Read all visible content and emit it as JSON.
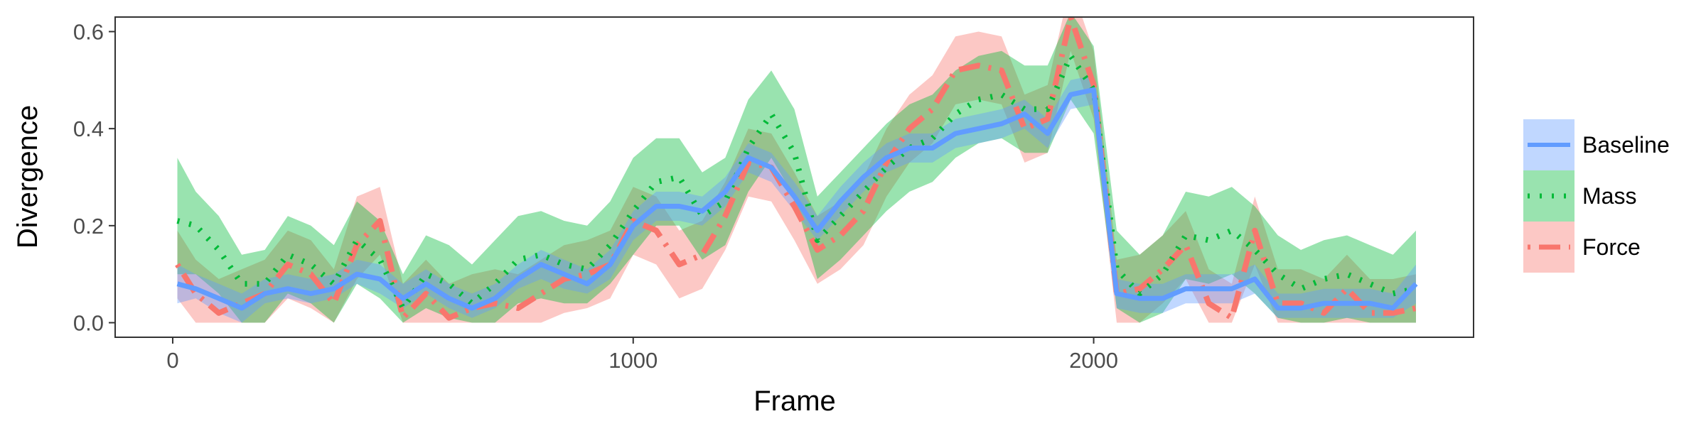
{
  "chart_data": {
    "type": "line",
    "title": "",
    "xlabel": "Frame",
    "ylabel": "Divergence",
    "xlim": [
      -125,
      2825
    ],
    "ylim": [
      -0.03,
      0.63
    ],
    "xticks": [
      0,
      1000,
      2000
    ],
    "yticks": [
      0.0,
      0.2,
      0.4,
      0.6
    ],
    "xtick_labels": [
      "0",
      "1000",
      "2000"
    ],
    "ytick_labels": [
      "0.0",
      "0.2",
      "0.4",
      "0.6"
    ],
    "grid": false,
    "legend_position": "right",
    "x": [
      10,
      50,
      100,
      150,
      200,
      250,
      300,
      350,
      400,
      450,
      500,
      550,
      600,
      650,
      700,
      750,
      800,
      850,
      900,
      950,
      1000,
      1050,
      1100,
      1150,
      1200,
      1250,
      1300,
      1350,
      1400,
      1450,
      1500,
      1550,
      1600,
      1650,
      1700,
      1750,
      1800,
      1850,
      1900,
      1950,
      2000,
      2050,
      2100,
      2150,
      2200,
      2250,
      2300,
      2350,
      2400,
      2450,
      2500,
      2550,
      2600,
      2650,
      2700
    ],
    "series": [
      {
        "name": "Baseline",
        "color": "#619CFF",
        "line_style": "solid",
        "values": [
          0.08,
          0.07,
          0.05,
          0.03,
          0.06,
          0.07,
          0.06,
          0.07,
          0.1,
          0.09,
          0.05,
          0.08,
          0.05,
          0.03,
          0.05,
          0.09,
          0.12,
          0.1,
          0.08,
          0.12,
          0.2,
          0.24,
          0.24,
          0.23,
          0.27,
          0.34,
          0.32,
          0.26,
          0.19,
          0.25,
          0.3,
          0.34,
          0.36,
          0.36,
          0.39,
          0.4,
          0.41,
          0.43,
          0.39,
          0.47,
          0.48,
          0.06,
          0.05,
          0.05,
          0.07,
          0.07,
          0.07,
          0.09,
          0.03,
          0.03,
          0.04,
          0.04,
          0.04,
          0.03,
          0.08
        ],
        "lower": [
          0.04,
          0.05,
          0.02,
          0.0,
          0.04,
          0.05,
          0.04,
          0.05,
          0.08,
          0.06,
          0.03,
          0.06,
          0.03,
          0.01,
          0.03,
          0.07,
          0.09,
          0.07,
          0.06,
          0.09,
          0.17,
          0.21,
          0.21,
          0.2,
          0.24,
          0.31,
          0.29,
          0.23,
          0.17,
          0.22,
          0.27,
          0.31,
          0.33,
          0.33,
          0.36,
          0.37,
          0.38,
          0.4,
          0.36,
          0.44,
          0.45,
          0.03,
          0.02,
          0.02,
          0.04,
          0.04,
          0.04,
          0.06,
          0.01,
          0.01,
          0.01,
          0.01,
          0.01,
          0.01,
          0.04
        ],
        "upper": [
          0.12,
          0.1,
          0.08,
          0.06,
          0.09,
          0.1,
          0.09,
          0.1,
          0.13,
          0.12,
          0.08,
          0.11,
          0.08,
          0.06,
          0.08,
          0.12,
          0.15,
          0.13,
          0.11,
          0.15,
          0.23,
          0.27,
          0.27,
          0.26,
          0.3,
          0.37,
          0.35,
          0.29,
          0.22,
          0.28,
          0.33,
          0.37,
          0.39,
          0.39,
          0.42,
          0.43,
          0.44,
          0.46,
          0.42,
          0.5,
          0.51,
          0.09,
          0.08,
          0.08,
          0.1,
          0.1,
          0.1,
          0.12,
          0.06,
          0.06,
          0.07,
          0.07,
          0.07,
          0.06,
          0.12
        ]
      },
      {
        "name": "Mass",
        "color": "#00BA38",
        "line_style": "dotted",
        "values": [
          0.21,
          0.2,
          0.15,
          0.08,
          0.08,
          0.14,
          0.12,
          0.08,
          0.17,
          0.13,
          0.03,
          0.1,
          0.08,
          0.04,
          0.08,
          0.13,
          0.14,
          0.12,
          0.11,
          0.16,
          0.23,
          0.29,
          0.3,
          0.22,
          0.25,
          0.36,
          0.43,
          0.35,
          0.17,
          0.22,
          0.27,
          0.32,
          0.36,
          0.38,
          0.43,
          0.46,
          0.47,
          0.44,
          0.44,
          0.55,
          0.48,
          0.11,
          0.06,
          0.1,
          0.18,
          0.17,
          0.19,
          0.15,
          0.1,
          0.07,
          0.09,
          0.1,
          0.08,
          0.06,
          0.07
        ],
        "lower": [
          0.1,
          0.1,
          0.06,
          0.0,
          0.0,
          0.06,
          0.04,
          0.0,
          0.08,
          0.05,
          0.0,
          0.03,
          0.01,
          0.0,
          0.0,
          0.04,
          0.05,
          0.04,
          0.04,
          0.08,
          0.14,
          0.2,
          0.2,
          0.13,
          0.16,
          0.27,
          0.34,
          0.26,
          0.09,
          0.13,
          0.18,
          0.23,
          0.27,
          0.29,
          0.34,
          0.37,
          0.38,
          0.35,
          0.35,
          0.46,
          0.39,
          0.03,
          0.0,
          0.02,
          0.09,
          0.08,
          0.1,
          0.06,
          0.01,
          0.0,
          0.0,
          0.01,
          0.0,
          0.0,
          0.0
        ],
        "upper": [
          0.34,
          0.27,
          0.22,
          0.14,
          0.15,
          0.22,
          0.2,
          0.16,
          0.25,
          0.21,
          0.1,
          0.18,
          0.16,
          0.12,
          0.17,
          0.22,
          0.23,
          0.21,
          0.2,
          0.25,
          0.34,
          0.38,
          0.38,
          0.31,
          0.34,
          0.46,
          0.52,
          0.44,
          0.26,
          0.31,
          0.36,
          0.41,
          0.45,
          0.47,
          0.52,
          0.55,
          0.56,
          0.53,
          0.53,
          0.64,
          0.57,
          0.19,
          0.14,
          0.18,
          0.27,
          0.26,
          0.28,
          0.24,
          0.18,
          0.15,
          0.17,
          0.18,
          0.16,
          0.14,
          0.19
        ]
      },
      {
        "name": "Force",
        "color": "#F8766D",
        "line_style": "dotdash",
        "values": [
          0.12,
          0.06,
          0.02,
          0.04,
          0.06,
          0.12,
          0.1,
          0.04,
          0.16,
          0.21,
          0.01,
          0.06,
          0.01,
          0.03,
          0.04,
          0.03,
          0.06,
          0.09,
          0.1,
          0.12,
          0.21,
          0.19,
          0.12,
          0.14,
          0.22,
          0.33,
          0.32,
          0.24,
          0.15,
          0.18,
          0.23,
          0.33,
          0.4,
          0.44,
          0.52,
          0.53,
          0.52,
          0.4,
          0.42,
          0.63,
          0.49,
          0.06,
          0.07,
          0.11,
          0.16,
          0.04,
          0.01,
          0.19,
          0.04,
          0.04,
          0.02,
          0.07,
          0.02,
          0.02,
          0.03
        ],
        "lower": [
          0.05,
          0.0,
          0.0,
          0.0,
          0.0,
          0.05,
          0.03,
          0.0,
          0.09,
          0.14,
          0.0,
          0.0,
          0.0,
          0.0,
          0.0,
          0.0,
          0.0,
          0.02,
          0.03,
          0.05,
          0.14,
          0.12,
          0.05,
          0.07,
          0.15,
          0.26,
          0.25,
          0.17,
          0.08,
          0.11,
          0.16,
          0.26,
          0.33,
          0.37,
          0.45,
          0.46,
          0.45,
          0.33,
          0.35,
          0.56,
          0.42,
          0.0,
          0.0,
          0.04,
          0.09,
          0.0,
          0.0,
          0.12,
          0.0,
          0.0,
          0.0,
          0.0,
          0.0,
          0.0,
          0.0
        ],
        "upper": [
          0.19,
          0.13,
          0.09,
          0.11,
          0.13,
          0.19,
          0.17,
          0.11,
          0.26,
          0.28,
          0.08,
          0.13,
          0.08,
          0.1,
          0.11,
          0.1,
          0.13,
          0.16,
          0.17,
          0.19,
          0.28,
          0.26,
          0.19,
          0.21,
          0.29,
          0.4,
          0.39,
          0.31,
          0.22,
          0.25,
          0.3,
          0.4,
          0.47,
          0.51,
          0.59,
          0.6,
          0.59,
          0.47,
          0.49,
          0.7,
          0.56,
          0.13,
          0.14,
          0.18,
          0.23,
          0.11,
          0.08,
          0.26,
          0.11,
          0.11,
          0.09,
          0.14,
          0.09,
          0.09,
          0.1
        ]
      }
    ]
  }
}
